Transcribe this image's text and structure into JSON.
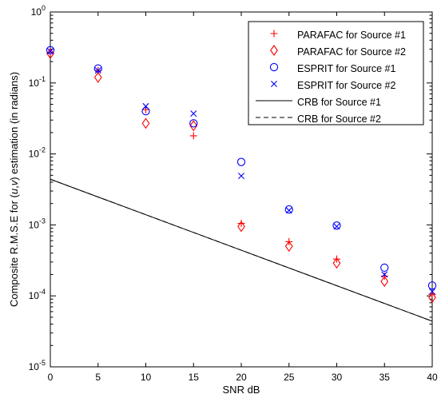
{
  "chart_data": {
    "type": "scatter",
    "xlabel": "SNR dB",
    "ylabel_pre": "Composite R.M.S.E for (",
    "ylabel_u": "u",
    "ylabel_comma": ",",
    "ylabel_v": "v",
    "ylabel_post": ") estimation (in radians)",
    "xlim": [
      0,
      40
    ],
    "ylim": [
      1e-05,
      1
    ],
    "yscale": "log",
    "grid": false,
    "legend_position": "top-right",
    "x_ticks": [
      "0",
      "5",
      "10",
      "15",
      "20",
      "25",
      "30",
      "35",
      "40"
    ],
    "y_ticks": [
      {
        "base": "10",
        "exp": "0"
      },
      {
        "base": "10",
        "exp": "-1"
      },
      {
        "base": "10",
        "exp": "-2"
      },
      {
        "base": "10",
        "exp": "-3"
      },
      {
        "base": "10",
        "exp": "-4"
      },
      {
        "base": "10",
        "exp": "-5"
      }
    ],
    "series": [
      {
        "name": "PARAFAC for Source #1",
        "marker": "plus",
        "color": "#ff0000",
        "x": [
          0,
          5,
          10,
          15,
          20,
          25,
          30,
          35,
          40
        ],
        "y": [
          0.27,
          0.15,
          0.042,
          0.018,
          0.00105,
          0.00058,
          0.00033,
          0.00019,
          0.000105
        ]
      },
      {
        "name": "PARAFAC for Source #2",
        "marker": "diamond",
        "color": "#ff0000",
        "x": [
          0,
          5,
          10,
          15,
          20,
          25,
          30,
          35,
          40
        ],
        "y": [
          0.26,
          0.12,
          0.027,
          0.025,
          0.00095,
          0.0005,
          0.00029,
          0.00016,
          9.5e-05
        ]
      },
      {
        "name": "ESPRIT for Source #1",
        "marker": "circle",
        "color": "#0000ff",
        "x": [
          0,
          5,
          10,
          15,
          20,
          25,
          30,
          35,
          40
        ],
        "y": [
          0.29,
          0.16,
          0.04,
          0.027,
          0.0077,
          0.00165,
          0.00098,
          0.00025,
          0.00014
        ]
      },
      {
        "name": "ESPRIT for Source #2",
        "marker": "x",
        "color": "#0000ff",
        "x": [
          0,
          5,
          10,
          15,
          20,
          25,
          30,
          35,
          40
        ],
        "y": [
          0.28,
          0.15,
          0.047,
          0.037,
          0.0049,
          0.0016,
          0.00095,
          0.0002,
          0.000115
        ]
      },
      {
        "name": "CRB for Source #1",
        "marker": "line-solid",
        "color": "#000000",
        "x": [
          0,
          40
        ],
        "y": [
          0.0044,
          4.4e-05
        ]
      },
      {
        "name": "CRB for Source #2",
        "marker": "line-dashed",
        "color": "#000000",
        "x": [
          0,
          40
        ],
        "y": [
          0.0044,
          4.4e-05
        ]
      }
    ]
  }
}
